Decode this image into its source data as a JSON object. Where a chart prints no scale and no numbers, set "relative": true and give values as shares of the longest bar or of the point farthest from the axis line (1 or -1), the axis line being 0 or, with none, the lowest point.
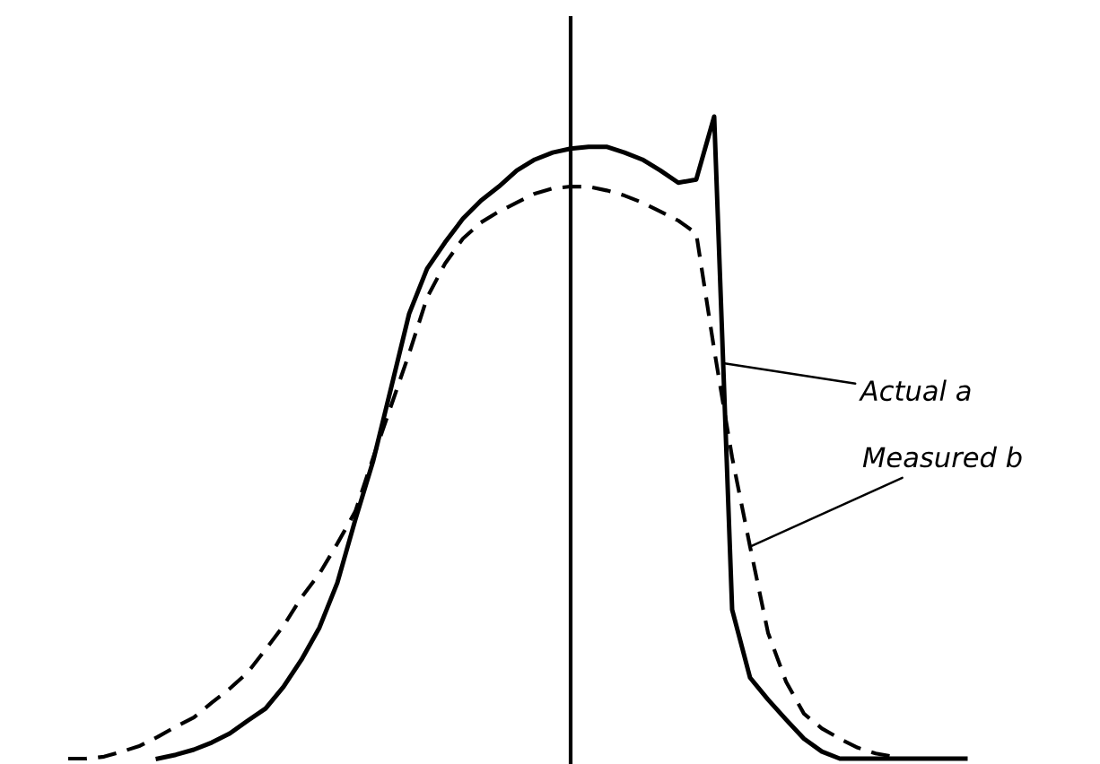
{
  "chart_data": {
    "type": "line",
    "relative": true,
    "categories": [
      null,
      null,
      null,
      null,
      null,
      null,
      null,
      null,
      null,
      null,
      null,
      null,
      null,
      null,
      null,
      null,
      null,
      null,
      null,
      null,
      null,
      null,
      null,
      null,
      null,
      null,
      null,
      null,
      null,
      null,
      null,
      null,
      null,
      null,
      null,
      null,
      null,
      null,
      null,
      null,
      null,
      null,
      null,
      null,
      null,
      null,
      null,
      null,
      null,
      null,
      null,
      null
    ],
    "series": [
      {
        "name": "Actual a",
        "color": "#000000",
        "line_style": "solid",
        "values": [
          null,
          null,
          null,
          null,
          null,
          0,
          0.006,
          0.014,
          0.025,
          0.039,
          0.059,
          0.078,
          0.112,
          0.154,
          0.204,
          0.274,
          0.372,
          0.464,
          0.578,
          0.693,
          0.763,
          0.804,
          0.841,
          0.869,
          0.891,
          0.916,
          0.933,
          0.944,
          0.95,
          0.953,
          0.953,
          0.944,
          0.933,
          0.916,
          0.897,
          0.902,
          1,
          0.232,
          0.126,
          0.092,
          0.061,
          0.031,
          0.011,
          0,
          0,
          0,
          0,
          0,
          0,
          0,
          0,
          null
        ]
      },
      {
        "name": "Measured b",
        "color": "#000000",
        "line_style": "dashed",
        "values": [
          0,
          0,
          0.003,
          0.011,
          0.02,
          0.034,
          0.05,
          0.064,
          0.087,
          0.109,
          0.134,
          0.17,
          0.207,
          0.251,
          0.288,
          0.335,
          0.385,
          0.469,
          0.55,
          0.631,
          0.718,
          0.771,
          0.81,
          0.835,
          0.852,
          0.866,
          0.88,
          0.888,
          0.891,
          0.891,
          0.885,
          0.877,
          0.866,
          0.852,
          0.838,
          0.818,
          0.637,
          0.469,
          0.33,
          0.196,
          0.12,
          0.07,
          0.047,
          0.031,
          0.017,
          0.008,
          0.003,
          null,
          null,
          null,
          null,
          null
        ]
      }
    ],
    "marker": "none",
    "grid": false,
    "legend": "right"
  }
}
